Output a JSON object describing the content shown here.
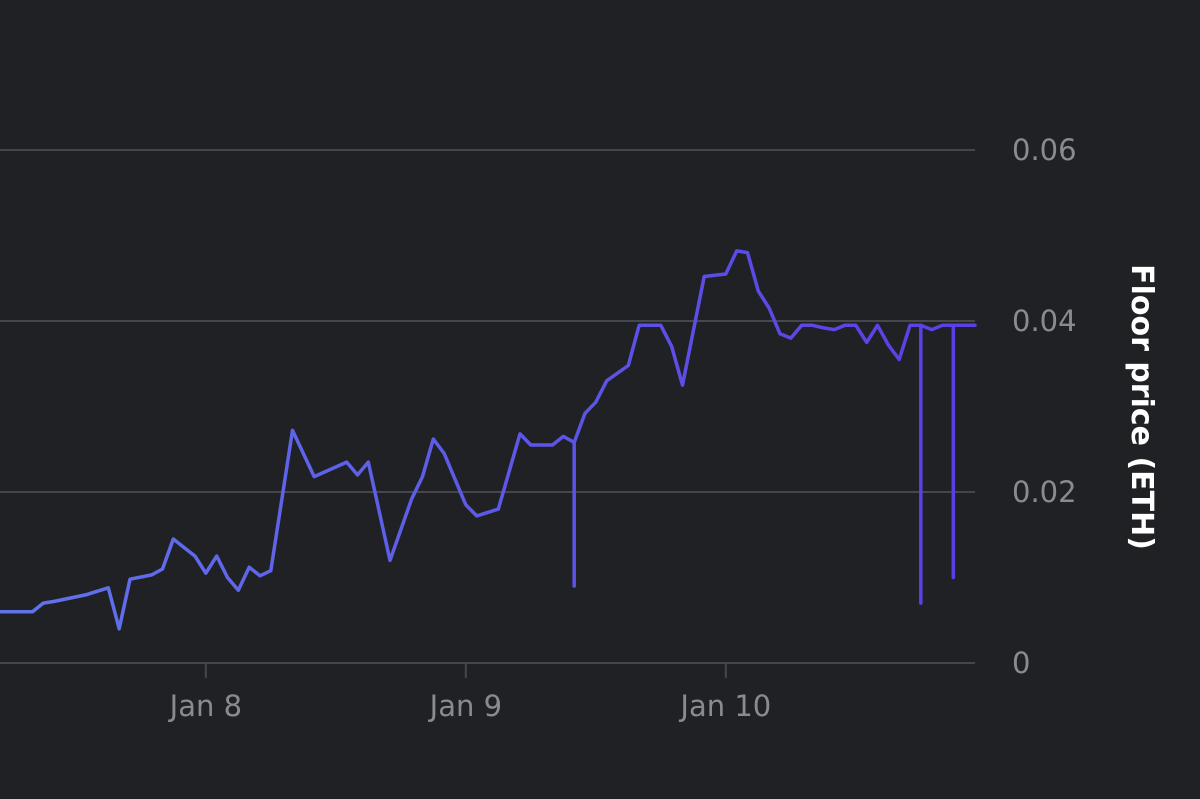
{
  "chart_data": {
    "type": "line",
    "title": "",
    "xlabel": "",
    "ylabel": "Floor price (ETH)",
    "ylim": [
      0,
      0.06
    ],
    "xlim": [
      "Jan 7 05:00",
      "Jan 10 23:00"
    ],
    "y_axis_position": "right",
    "y_ticks": [
      0,
      0.02,
      0.04,
      0.06
    ],
    "y_tick_labels": [
      "0",
      "0.02",
      "0.04",
      "0.06"
    ],
    "x_ticks": [
      "Jan 8",
      "Jan 9",
      "Jan 10"
    ],
    "grid": "horizontal",
    "legend": "none",
    "line_gradient": [
      "#6074ea",
      "#5a3ee6"
    ],
    "background": "#202125",
    "series": [
      {
        "x": [
          "Jan 7 05:00",
          "Jan 7 08:00",
          "Jan 7 09:00",
          "Jan 7 10:00",
          "Jan 7 13:00",
          "Jan 7 15:00",
          "Jan 7 16:00",
          "Jan 7 17:00",
          "Jan 7 19:00",
          "Jan 7 20:00",
          "Jan 7 21:00",
          "Jan 7 22:00",
          "Jan 7 23:00",
          "Jan 8 00:00",
          "Jan 8 01:00",
          "Jan 8 02:00",
          "Jan 8 03:00",
          "Jan 8 04:00",
          "Jan 8 05:00",
          "Jan 8 06:00",
          "Jan 8 08:00",
          "Jan 8 10:00",
          "Jan 8 13:00",
          "Jan 8 14:00",
          "Jan 8 15:00",
          "Jan 8 17:00",
          "Jan 8 19:00",
          "Jan 8 20:00",
          "Jan 8 21:00",
          "Jan 8 22:00",
          "Jan 8 23:00",
          "Jan 9 00:00",
          "Jan 9 01:00",
          "Jan 9 03:00",
          "Jan 9 05:00",
          "Jan 9 06:00",
          "Jan 9 07:00",
          "Jan 9 08:00",
          "Jan 9 09:00",
          "Jan 9 10:00",
          "Jan 9 11:00",
          "Jan 9 12:00",
          "Jan 9 13:00",
          "Jan 9 15:00",
          "Jan 9 16:00",
          "Jan 9 18:00",
          "Jan 9 19:00",
          "Jan 9 20:00",
          "Jan 9 22:00",
          "Jan 10 00:00",
          "Jan 10 01:00",
          "Jan 10 02:00",
          "Jan 10 03:00",
          "Jan 10 04:00",
          "Jan 10 05:00",
          "Jan 10 06:00",
          "Jan 10 07:00",
          "Jan 10 08:00",
          "Jan 10 09:00",
          "Jan 10 10:00",
          "Jan 10 11:00",
          "Jan 10 12:00",
          "Jan 10 13:00",
          "Jan 10 14:00",
          "Jan 10 15:00",
          "Jan 10 16:00",
          "Jan 10 17:00",
          "Jan 10 18:00",
          "Jan 10 19:00",
          "Jan 10 20:00",
          "Jan 10 21:00",
          "Jan 10 22:00",
          "Jan 10 23:00"
        ],
        "values": [
          0.006,
          0.006,
          0.007,
          0.0072,
          0.008,
          0.0088,
          0.004,
          0.0098,
          0.0103,
          0.011,
          0.0145,
          0.0135,
          0.0125,
          0.0105,
          0.0125,
          0.01,
          0.0085,
          0.0112,
          0.0102,
          0.0108,
          0.0272,
          0.0218,
          0.0235,
          0.022,
          0.0235,
          0.012,
          0.0192,
          0.0218,
          0.0262,
          0.0245,
          0.0215,
          0.0185,
          0.0172,
          0.018,
          0.0268,
          0.0255,
          0.0255,
          0.0255,
          0.0265,
          0.0258,
          0.0292,
          0.0305,
          0.033,
          0.0348,
          0.0395,
          0.0395,
          0.037,
          0.0325,
          0.0452,
          0.0455,
          0.0482,
          0.048,
          0.0435,
          0.0415,
          0.0385,
          0.038,
          0.0395,
          0.0395,
          0.0392,
          0.039,
          0.0395,
          0.0395,
          0.0375,
          0.0395,
          0.0372,
          0.0355,
          0.0395,
          0.0395,
          0.039,
          0.0395,
          0.0395,
          0.0395,
          0.0395
        ],
        "dips": [
          {
            "x": "Jan 9 10:00",
            "value": 0.009
          },
          {
            "x": "Jan 10 18:00",
            "value": 0.007
          },
          {
            "x": "Jan 10 21:00",
            "value": 0.01
          }
        ]
      }
    ]
  }
}
